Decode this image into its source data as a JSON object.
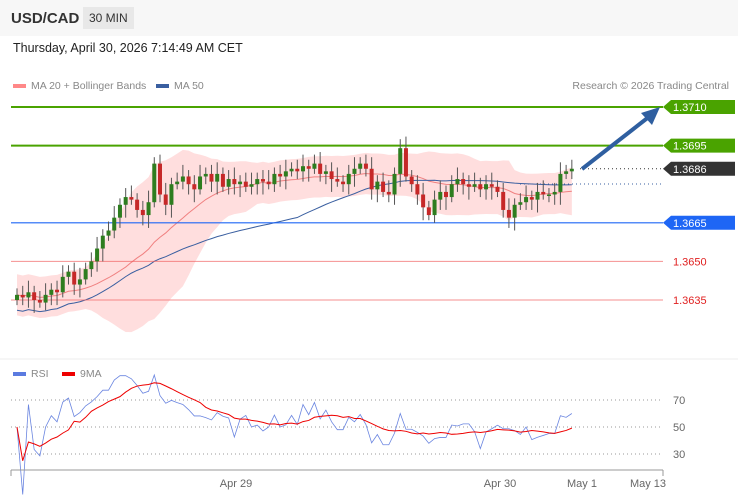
{
  "header": {
    "symbol": "USD/CAD",
    "timeframe": "30 MIN",
    "datetime": "Thursday, April 30, 2026 7:14:49 AM CET"
  },
  "legend": {
    "bollinger": "MA 20 + Bollinger Bands",
    "ma50": "MA 50",
    "copyright": "Research © 2026 Trading Central",
    "rsi": "RSI",
    "rsi_ma": "9MA"
  },
  "colors": {
    "up": "#2e7d1f",
    "down": "#c62828",
    "band": "#ffd6d6",
    "ma20": "#f08080",
    "ma50": "#3a5fa0",
    "target": "#4aa300",
    "pivot": "#1e66f5",
    "support": "#f06060",
    "last": "#333333"
  },
  "chart_data": {
    "type": "candlestick",
    "ylim": [
      1.3625,
      1.3715
    ],
    "levels": [
      {
        "value": "1.3710",
        "kind": "target"
      },
      {
        "value": "1.3695",
        "kind": "target"
      },
      {
        "value": "1.3686",
        "kind": "last"
      },
      {
        "value": "1.3665",
        "kind": "pivot"
      },
      {
        "value": "1.3650",
        "kind": "support"
      },
      {
        "value": "1.3635",
        "kind": "support"
      }
    ],
    "closes": [
      1.3637,
      1.3636,
      1.3638,
      1.3635,
      1.3634,
      1.3637,
      1.3639,
      1.3638,
      1.3644,
      1.3646,
      1.3641,
      1.3643,
      1.3647,
      1.365,
      1.3655,
      1.366,
      1.3662,
      1.3667,
      1.3672,
      1.3675,
      1.3674,
      1.367,
      1.3668,
      1.3673,
      1.3688,
      1.3676,
      1.3672,
      1.368,
      1.3681,
      1.3683,
      1.368,
      1.3678,
      1.3683,
      1.3684,
      1.3681,
      1.3684,
      1.3679,
      1.3682,
      1.368,
      1.3681,
      1.3679,
      1.368,
      1.3682,
      1.3681,
      1.368,
      1.3684,
      1.3683,
      1.3685,
      1.3686,
      1.3685,
      1.3687,
      1.3686,
      1.3688,
      1.3684,
      1.3685,
      1.3682,
      1.3681,
      1.368,
      1.3684,
      1.3686,
      1.3688,
      1.3686,
      1.3678,
      1.3681,
      1.3677,
      1.3676,
      1.3684,
      1.3694,
      1.3683,
      1.368,
      1.3676,
      1.3671,
      1.3668,
      1.3674,
      1.3677,
      1.3675,
      1.368,
      1.3682,
      1.368,
      1.3679,
      1.368,
      1.3678,
      1.368,
      1.3679,
      1.3677,
      1.367,
      1.3667,
      1.3672,
      1.3673,
      1.3675,
      1.3674,
      1.3677,
      1.3676,
      1.3676,
      1.3677,
      1.3684,
      1.3685,
      1.3686
    ],
    "rsi_ticks": [
      "70",
      "50",
      "30"
    ],
    "x_ticks": [
      "Apr 29",
      "Apr 30",
      "May 1",
      "May 13"
    ]
  }
}
